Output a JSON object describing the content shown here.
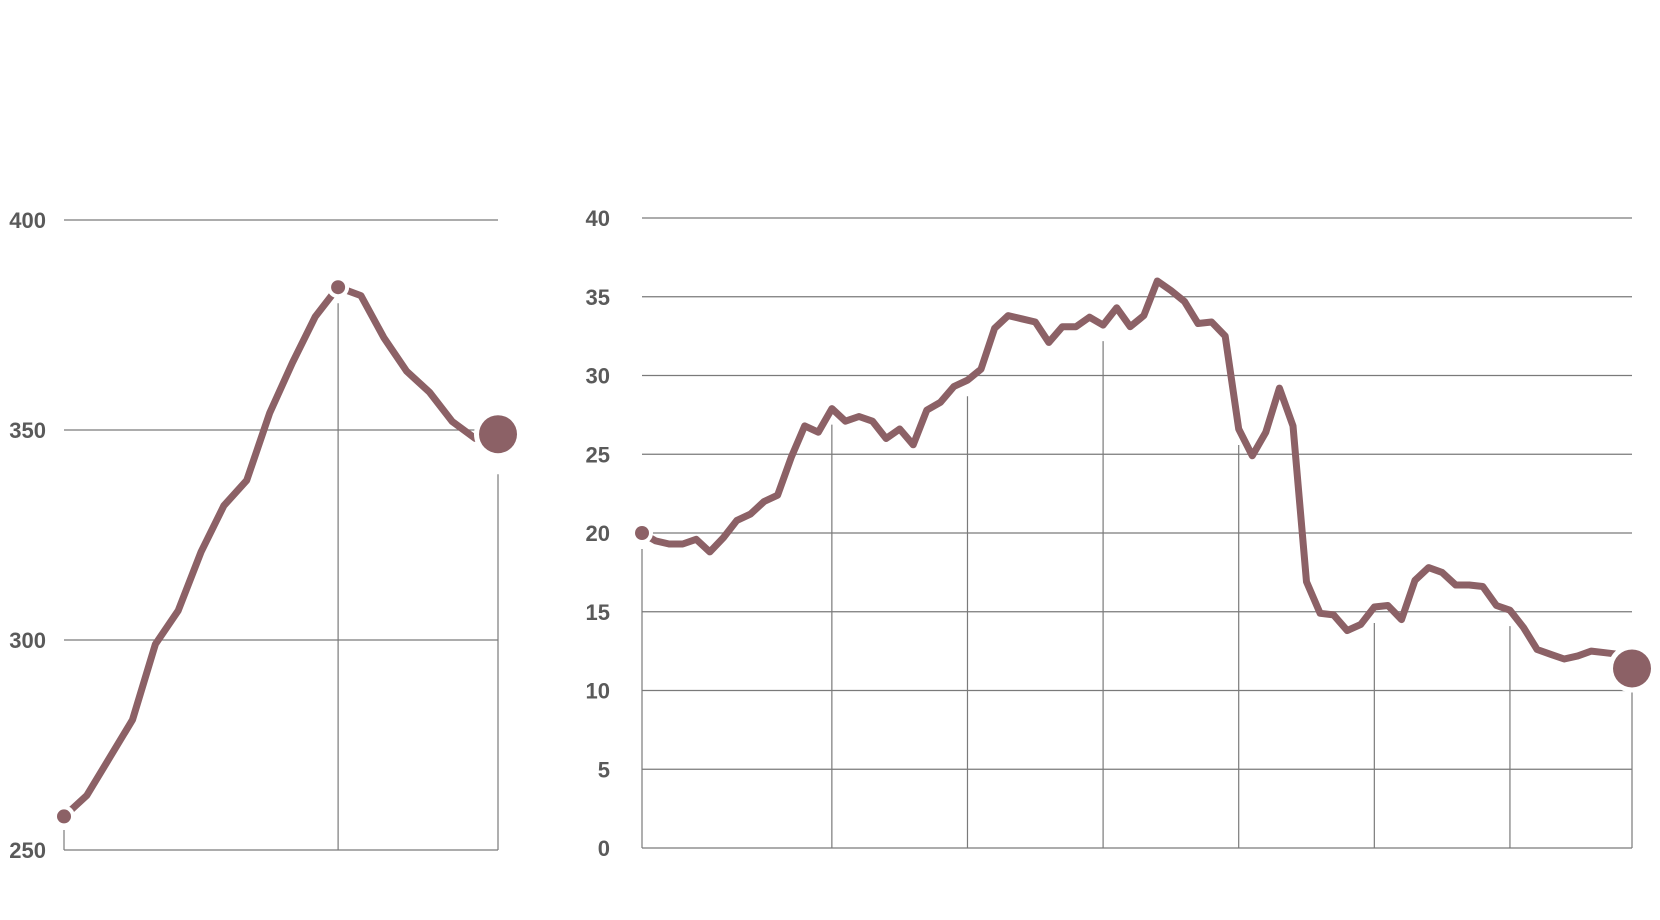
{
  "colors": {
    "series": "#8c6166",
    "grid": "#7a7a7a",
    "label": "#5a5a5a",
    "background": "#ffffff"
  },
  "chart_data": [
    {
      "type": "line",
      "title": "",
      "xlabel": "",
      "ylabel": "",
      "ylim": [
        250,
        400
      ],
      "yticks": [
        "250",
        "300",
        "350",
        "400"
      ],
      "grid": true,
      "legend": "none",
      "x": [
        0,
        1,
        2,
        3,
        4,
        5,
        6,
        7,
        8,
        9,
        10,
        11,
        12,
        13,
        14,
        15,
        16,
        17,
        18,
        19
      ],
      "series": [
        {
          "values": [
            258,
            263,
            272,
            281,
            299,
            307,
            321,
            332,
            338,
            354,
            366,
            377,
            384,
            382,
            372,
            364,
            359,
            352,
            348,
            349
          ]
        }
      ],
      "markers": {
        "start_index": 0,
        "peak_index": 12,
        "end_index": 19
      },
      "vertical_rules_at_index": [
        12
      ]
    },
    {
      "type": "line",
      "title": "",
      "xlabel": "",
      "ylabel": "",
      "ylim": [
        0,
        40
      ],
      "yticks": [
        "0",
        "5",
        "10",
        "15",
        "20",
        "25",
        "30",
        "35",
        "40"
      ],
      "grid": true,
      "legend": "none",
      "x": [
        0,
        1,
        2,
        3,
        4,
        5,
        6,
        7,
        8,
        9,
        10,
        11,
        12,
        13,
        14,
        15,
        16,
        17,
        18,
        19,
        20,
        21,
        22,
        23,
        24,
        25,
        26,
        27,
        28,
        29,
        30,
        31,
        32,
        33,
        34,
        35,
        36,
        37,
        38,
        39,
        40,
        41,
        42,
        43,
        44,
        45,
        46,
        47,
        48,
        49,
        50,
        51,
        52,
        53,
        54,
        55,
        56,
        57,
        58,
        59,
        60,
        61,
        62,
        63,
        64,
        65,
        66,
        67,
        68,
        69,
        70,
        71,
        72,
        73
      ],
      "series": [
        {
          "values": [
            20.0,
            19.5,
            19.3,
            19.3,
            19.6,
            18.8,
            19.7,
            20.8,
            21.2,
            22.0,
            22.4,
            24.8,
            26.8,
            26.4,
            27.9,
            27.1,
            27.4,
            27.1,
            26.0,
            26.6,
            25.6,
            27.8,
            28.3,
            29.3,
            29.7,
            30.4,
            33.0,
            33.8,
            33.6,
            33.4,
            32.1,
            33.1,
            33.1,
            33.7,
            33.2,
            34.3,
            33.1,
            33.8,
            36.0,
            35.4,
            34.7,
            33.3,
            33.4,
            32.5,
            26.6,
            24.9,
            26.4,
            29.2,
            26.8,
            16.9,
            14.9,
            14.8,
            13.8,
            14.2,
            15.3,
            15.4,
            14.5,
            17.0,
            17.8,
            17.5,
            16.7,
            16.7,
            16.6,
            15.4,
            15.1,
            14.0,
            12.6,
            12.3,
            12.0,
            12.2,
            12.5,
            12.4,
            12.3,
            11.4
          ]
        }
      ],
      "markers": {
        "start_index": 0,
        "end_index": 73
      },
      "vertical_rules_at_index": [
        0,
        14,
        24,
        34,
        44,
        54,
        64,
        73
      ]
    }
  ]
}
